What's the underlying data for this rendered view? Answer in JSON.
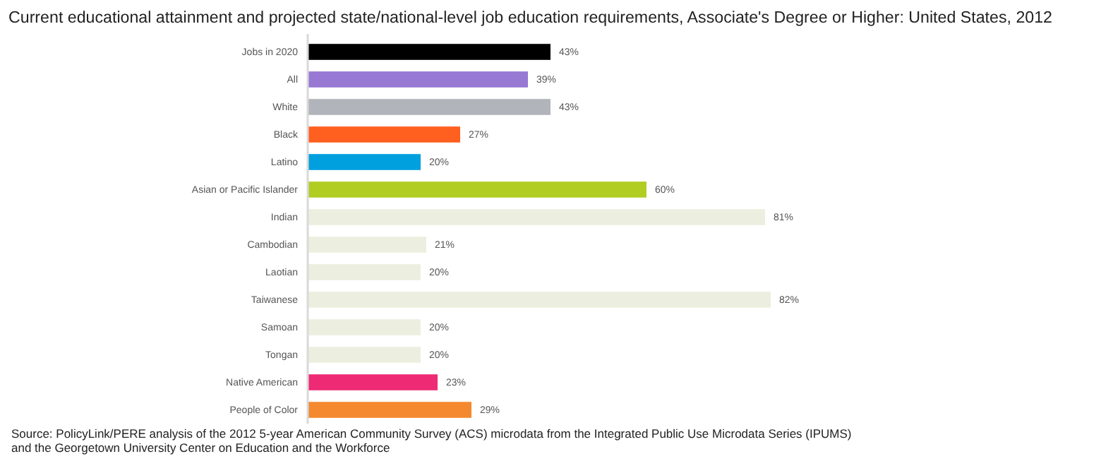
{
  "chart_data": {
    "type": "bar",
    "orientation": "horizontal",
    "title": "Current educational attainment and projected state/national-level job education requirements, Associate's Degree or Higher: United States, 2012",
    "categories": [
      "Jobs in 2020",
      "All",
      "White",
      "Black",
      "Latino",
      "Asian or Pacific Islander",
      "Indian",
      "Cambodian",
      "Laotian",
      "Taiwanese",
      "Samoan",
      "Tongan",
      "Native American",
      "People of Color"
    ],
    "values": [
      43,
      39,
      43,
      27,
      20,
      60,
      81,
      21,
      20,
      82,
      20,
      20,
      23,
      29
    ],
    "colors": [
      "#000000",
      "#9778d3",
      "#b1b4ba",
      "#ff5f1f",
      "#009fde",
      "#b2cd22",
      "#ecefdf",
      "#ecefdf",
      "#ecefdf",
      "#ecefdf",
      "#ecefdf",
      "#ecefdf",
      "#ee2a74",
      "#f5892f"
    ],
    "value_labels": [
      "43%",
      "39%",
      "43%",
      "27%",
      "20%",
      "60%",
      "81%",
      "21%",
      "20%",
      "82%",
      "20%",
      "20%",
      "23%",
      "29%"
    ],
    "annotations": [
      "Source: PolicyLink/PERE analysis of the 2012 5-year American Community Survey (ACS) microdata from the Integrated Public Use Microdata Series (IPUMS) and the Georgetown University Center on Education and the Workforce"
    ]
  }
}
